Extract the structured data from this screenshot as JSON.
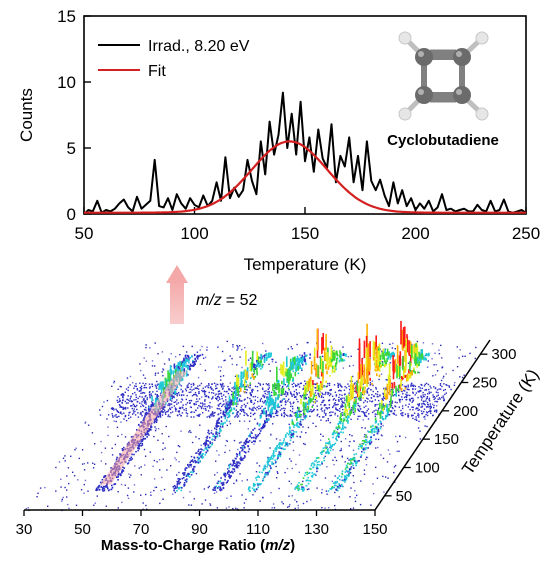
{
  "chart_data": [
    {
      "type": "line",
      "xlabel": "Temperature (K)",
      "ylabel": "Counts",
      "xlim": [
        50,
        250
      ],
      "ylim": [
        0,
        15
      ],
      "xticks": [
        50,
        100,
        150,
        200,
        250
      ],
      "yticks": [
        0,
        5,
        10,
        15
      ],
      "legend_position": "top-left",
      "series": [
        {
          "name": "Irrad., 8.20 eV",
          "color": "#000000",
          "x": [
            50,
            52,
            54,
            56,
            58,
            60,
            62,
            64,
            66,
            68,
            70,
            72,
            74,
            76,
            78,
            80,
            82,
            84,
            86,
            88,
            90,
            92,
            94,
            96,
            98,
            100,
            102,
            104,
            106,
            108,
            110,
            112,
            114,
            116,
            118,
            120,
            122,
            124,
            126,
            128,
            130,
            132,
            134,
            136,
            138,
            140,
            142,
            144,
            146,
            148,
            150,
            152,
            154,
            156,
            158,
            160,
            162,
            164,
            166,
            168,
            170,
            172,
            174,
            176,
            178,
            180,
            182,
            184,
            186,
            188,
            190,
            192,
            194,
            196,
            198,
            200,
            202,
            204,
            206,
            208,
            210,
            212,
            214,
            216,
            218,
            220,
            222,
            224,
            226,
            228,
            230,
            232,
            234,
            236,
            238,
            240,
            242,
            244,
            246,
            248,
            250
          ],
          "y": [
            0,
            0.3,
            0.2,
            1.0,
            0.1,
            0.3,
            0.2,
            0.4,
            0.8,
            1.1,
            0.5,
            0.2,
            1.3,
            0.4,
            0.7,
            1.0,
            4.1,
            0.6,
            0.5,
            1.2,
            0.3,
            1.5,
            0.8,
            0.4,
            1.2,
            0.7,
            0.5,
            1.4,
            0.6,
            1.0,
            2.4,
            1.0,
            4.3,
            1.2,
            2.0,
            1.3,
            1.8,
            4.1,
            2.5,
            1.5,
            5.5,
            3.0,
            7.0,
            4.5,
            6.0,
            9.2,
            5.0,
            7.6,
            4.5,
            8.5,
            4.0,
            5.8,
            3.2,
            6.4,
            4.2,
            3.5,
            6.8,
            2.4,
            4.4,
            3.6,
            5.8,
            2.4,
            4.4,
            1.8,
            5.5,
            2.5,
            1.8,
            2.6,
            1.4,
            0.6,
            2.4,
            0.8,
            1.8,
            0.6,
            1.2,
            0.3,
            0.8,
            0.4,
            1.0,
            0.2,
            0.5,
            1.5,
            0.3,
            0.4,
            0.2,
            0.3,
            0.4,
            0.2,
            0.2,
            0.7,
            0.3,
            0.2,
            1.0,
            0.2,
            0.3,
            1.1,
            0.2,
            0.1,
            0.2,
            0.3,
            0.1
          ]
        },
        {
          "name": "Fit",
          "color": "#d42020",
          "function": "gaussian",
          "center": 143,
          "amplitude": 5.4,
          "sigma": 17,
          "baseline": 0.1
        }
      ],
      "annotations": {
        "molecule_label": "Cyclobutadiene"
      }
    },
    {
      "type": "heatmap",
      "xlabel_main": "Mass-to-Charge Ratio (",
      "xlabel_mz": "m/z",
      "xlabel_close": ")",
      "zlabel": "Temperature (K)",
      "xlim": [
        30,
        150
      ],
      "zlim": [
        25,
        325
      ],
      "xticks": [
        30,
        50,
        70,
        90,
        110,
        130,
        150
      ],
      "zticks": [
        50,
        100,
        150,
        200,
        250,
        300
      ],
      "highlight": {
        "mz_prefix": "m/z",
        "mz_text": "= 52",
        "mz_value": 52
      },
      "ridges": [
        {
          "mz": 50,
          "intensity": 0.25
        },
        {
          "mz": 52,
          "intensity": 0.35
        },
        {
          "mz": 54,
          "intensity": 0.2
        },
        {
          "mz": 76,
          "intensity": 0.25
        },
        {
          "mz": 78,
          "intensity": 0.55
        },
        {
          "mz": 90,
          "intensity": 0.45
        },
        {
          "mz": 92,
          "intensity": 0.35
        },
        {
          "mz": 102,
          "intensity": 0.85
        },
        {
          "mz": 104,
          "intensity": 0.6
        },
        {
          "mz": 118,
          "intensity": 1.0
        },
        {
          "mz": 120,
          "intensity": 0.7
        },
        {
          "mz": 130,
          "intensity": 0.95
        },
        {
          "mz": 132,
          "intensity": 0.6
        }
      ]
    }
  ]
}
